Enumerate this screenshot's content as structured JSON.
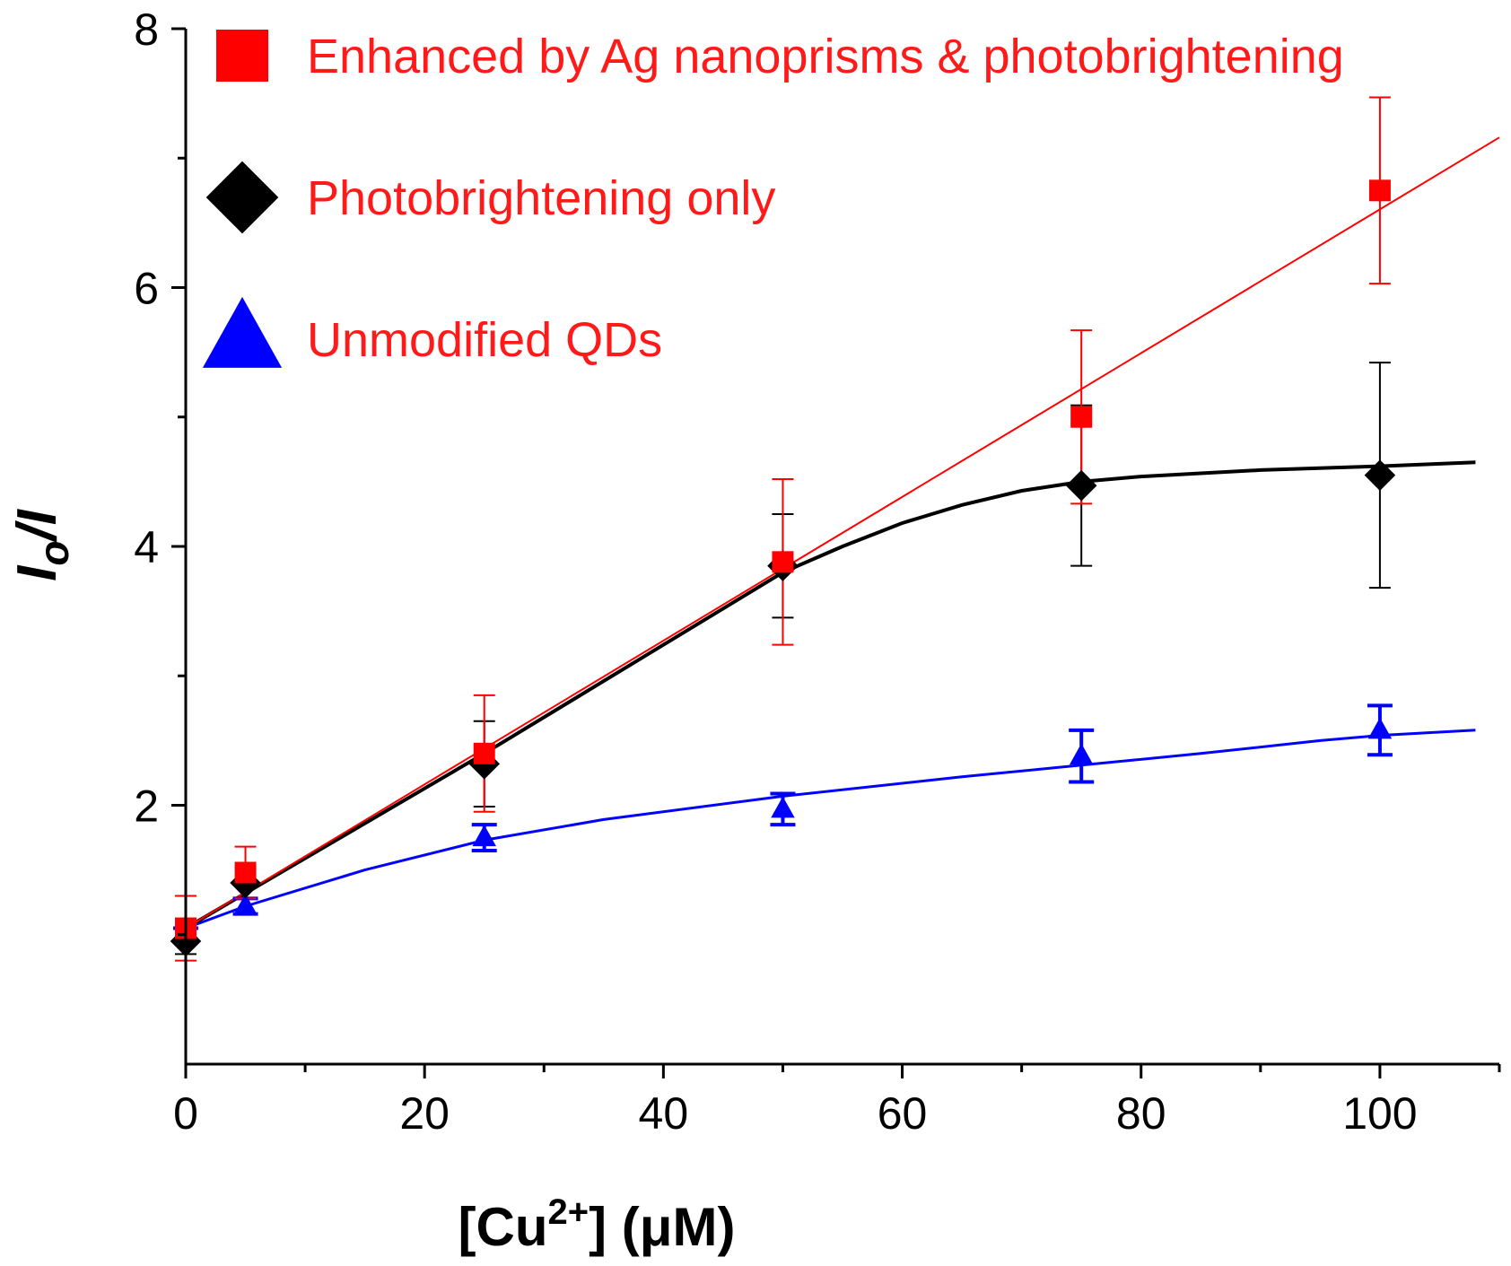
{
  "chart_data": {
    "type": "scatter",
    "title": "",
    "xlabel": {
      "prefix": "[Cu",
      "sup": "2+",
      "suffix": "] (μM)"
    },
    "ylabel": {
      "main": "I",
      "sub": "o",
      "suffix": "/I"
    },
    "xlim": [
      0,
      110
    ],
    "ylim": [
      0,
      8
    ],
    "x_ticks": [
      0,
      20,
      40,
      60,
      80,
      100
    ],
    "x_minor_ticks": [
      10,
      30,
      50,
      70,
      90,
      110
    ],
    "y_ticks": [
      2,
      4,
      6,
      8
    ],
    "y_minor_ticks": [
      1,
      3,
      5,
      7
    ],
    "grid": false,
    "legend_position": "top-left",
    "series": [
      {
        "name": "Enhanced by Ag nanoprisms & photobrightening",
        "marker": "square",
        "color": "#ff0000",
        "text_color": "#ff1a1a",
        "points": [
          {
            "x": 0,
            "y": 1.05,
            "err": 0.25
          },
          {
            "x": 5,
            "y": 1.48,
            "err": 0.2
          },
          {
            "x": 25,
            "y": 2.4,
            "err": 0.45
          },
          {
            "x": 50,
            "y": 3.88,
            "err": 0.64
          },
          {
            "x": 75,
            "y": 5.0,
            "err": 0.67
          },
          {
            "x": 100,
            "y": 6.75,
            "err": 0.72
          }
        ],
        "fit": [
          [
            0,
            1.05
          ],
          [
            110,
            7.16
          ]
        ]
      },
      {
        "name": "Photobrightening only",
        "marker": "diamond",
        "color": "#000000",
        "text_color": "#ff1a1a",
        "points": [
          {
            "x": 0,
            "y": 0.95,
            "err": 0.1
          },
          {
            "x": 5,
            "y": 1.4,
            "err": 0.12
          },
          {
            "x": 25,
            "y": 2.32,
            "err": 0.33
          },
          {
            "x": 50,
            "y": 3.85,
            "err": 0.4
          },
          {
            "x": 75,
            "y": 4.47,
            "err": 0.62
          },
          {
            "x": 100,
            "y": 4.55,
            "err": 0.87
          }
        ],
        "fit": [
          [
            0,
            1.05
          ],
          [
            25,
            2.4
          ],
          [
            50,
            3.8
          ],
          [
            55,
            4.0
          ],
          [
            60,
            4.18
          ],
          [
            65,
            4.32
          ],
          [
            70,
            4.43
          ],
          [
            75,
            4.5
          ],
          [
            80,
            4.54
          ],
          [
            90,
            4.59
          ],
          [
            100,
            4.62
          ],
          [
            108,
            4.65
          ]
        ]
      },
      {
        "name": "Unmodified QDs",
        "marker": "triangle",
        "color": "#0000ff",
        "text_color": "#ff1a1a",
        "points": [
          {
            "x": 0,
            "y": 1.0,
            "err": 0.05
          },
          {
            "x": 5,
            "y": 1.22,
            "err": 0.06
          },
          {
            "x": 25,
            "y": 1.75,
            "err": 0.1
          },
          {
            "x": 50,
            "y": 1.97,
            "err": 0.12
          },
          {
            "x": 75,
            "y": 2.38,
            "err": 0.2
          },
          {
            "x": 100,
            "y": 2.58,
            "err": 0.19
          }
        ],
        "fit": [
          [
            0,
            1.05
          ],
          [
            5,
            1.22
          ],
          [
            15,
            1.5
          ],
          [
            25,
            1.73
          ],
          [
            35,
            1.89
          ],
          [
            50,
            2.07
          ],
          [
            65,
            2.22
          ],
          [
            75,
            2.31
          ],
          [
            85,
            2.4
          ],
          [
            95,
            2.5
          ],
          [
            100,
            2.54
          ],
          [
            108,
            2.58
          ]
        ]
      }
    ]
  }
}
